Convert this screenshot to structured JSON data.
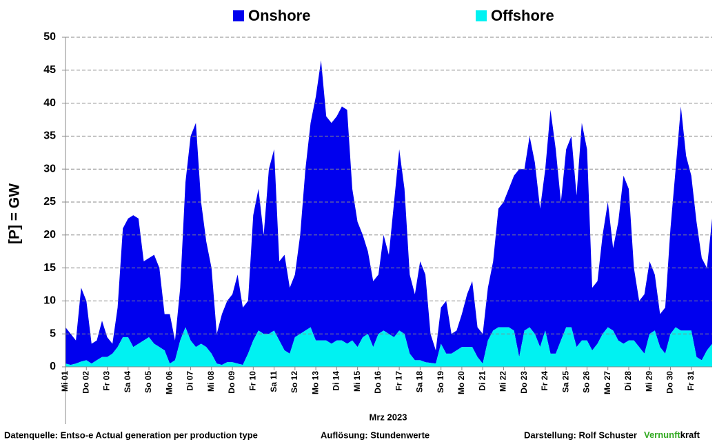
{
  "chart_data": {
    "type": "stacked_area",
    "y_label": "[P]  =  GW",
    "x_label": "Mrz 2023",
    "x": [
      0,
      0.25,
      0.5,
      0.75,
      1,
      1.25,
      1.5,
      1.75,
      2,
      2.25,
      2.5,
      2.75,
      3,
      3.25,
      3.5,
      3.75,
      4,
      4.25,
      4.5,
      4.75,
      5,
      5.25,
      5.5,
      5.75,
      6,
      6.25,
      6.5,
      6.75,
      7,
      7.25,
      7.5,
      7.75,
      8,
      8.25,
      8.5,
      8.75,
      9,
      9.25,
      9.5,
      9.75,
      10,
      10.25,
      10.5,
      10.75,
      11,
      11.25,
      11.5,
      11.75,
      12,
      12.25,
      12.5,
      12.75,
      13,
      13.25,
      13.5,
      13.75,
      14,
      14.25,
      14.5,
      14.75,
      15,
      15.25,
      15.5,
      15.75,
      16,
      16.25,
      16.5,
      16.75,
      17,
      17.25,
      17.5,
      17.75,
      18,
      18.25,
      18.5,
      18.75,
      19,
      19.25,
      19.5,
      19.75,
      20,
      20.25,
      20.5,
      20.75,
      21,
      21.25,
      21.5,
      21.75,
      22,
      22.25,
      22.5,
      22.75,
      23,
      23.25,
      23.5,
      23.75,
      24,
      24.25,
      24.5,
      24.75,
      25,
      25.25,
      25.5,
      25.75,
      26,
      26.25,
      26.5,
      26.75,
      27,
      27.25,
      27.5,
      27.75,
      28,
      28.25,
      28.5,
      28.75,
      29,
      29.25,
      29.5,
      29.75,
      30,
      30.25,
      30.5,
      30.75,
      31
    ],
    "series": [
      {
        "name": "Onshore",
        "color": "#0000ee",
        "values": [
          5.5,
          4.7,
          3.5,
          11.2,
          9,
          3,
          3,
          5.5,
          3,
          1.5,
          6,
          16.5,
          18,
          20,
          19,
          12,
          12,
          13.5,
          12,
          5.5,
          7.5,
          3,
          8,
          22,
          31,
          34,
          21.5,
          16,
          13,
          4.5,
          7.7,
          9.3,
          10.3,
          13.5,
          8.7,
          8,
          19,
          21.5,
          15,
          25,
          27.5,
          12,
          14.5,
          10,
          9.5,
          15,
          24.5,
          31,
          37,
          42.5,
          34,
          33.5,
          34,
          35.5,
          35.5,
          23,
          19,
          15.5,
          12.5,
          10,
          9,
          14.5,
          12,
          20.5,
          27.5,
          22,
          12,
          10,
          15,
          13.3,
          4.4,
          2,
          5.5,
          8,
          3,
          3,
          5,
          8,
          10,
          4.5,
          4.5,
          8,
          10.5,
          18,
          19,
          21,
          23.5,
          28.5,
          24.5,
          29,
          26,
          21,
          24.5,
          37,
          31,
          21,
          27,
          29,
          23,
          33,
          29,
          9.5,
          9.5,
          15,
          19,
          12.5,
          18,
          25.5,
          23,
          11,
          7,
          9,
          11,
          8.5,
          5,
          7,
          16,
          24,
          34,
          26.5,
          23.5,
          20.5,
          15.5,
          12.5,
          19
        ]
      },
      {
        "name": "Offshore",
        "color": "#00f2f2",
        "values": [
          0.5,
          0.3,
          0.5,
          0.8,
          1,
          0.5,
          1,
          1.5,
          1.5,
          2,
          3,
          4.5,
          4.5,
          3,
          3.5,
          4,
          4.5,
          3.5,
          3,
          2.5,
          0.5,
          1,
          4,
          6,
          4,
          3,
          3.5,
          3,
          2,
          0.5,
          0.3,
          0.7,
          0.7,
          0.5,
          0.3,
          2,
          4,
          5.5,
          5,
          5,
          5.5,
          4,
          2.5,
          2,
          4.5,
          5,
          5.5,
          6,
          4,
          4,
          4,
          3.5,
          4,
          4,
          3.5,
          4,
          3,
          4.5,
          5,
          3,
          5,
          5.5,
          5,
          4.5,
          5.5,
          5,
          2,
          1,
          1,
          0.7,
          0.6,
          0.5,
          3.5,
          2,
          2,
          2.5,
          3,
          3,
          3,
          1.5,
          0.5,
          4,
          5.5,
          6,
          6,
          6,
          5.5,
          1.5,
          5.5,
          6,
          5,
          3,
          5.5,
          2,
          2,
          4,
          6,
          6,
          3,
          4,
          4,
          2.5,
          3.5,
          5,
          6,
          5.5,
          4,
          3.5,
          4,
          4,
          3,
          2,
          5,
          5.5,
          3,
          2,
          5,
          6,
          5.5,
          5.5,
          5.5,
          1.5,
          1,
          2.5,
          3.5
        ]
      }
    ],
    "xlim": [
      0,
      31
    ],
    "xticks": [
      {
        "value": 0,
        "label": "Mi 01"
      },
      {
        "value": 1,
        "label": "Do 02"
      },
      {
        "value": 2,
        "label": "Fr 03"
      },
      {
        "value": 3,
        "label": "Sa 04"
      },
      {
        "value": 4,
        "label": "So 05"
      },
      {
        "value": 5,
        "label": "Mo 06"
      },
      {
        "value": 6,
        "label": "Di 07"
      },
      {
        "value": 7,
        "label": "Mi 08"
      },
      {
        "value": 8,
        "label": "Do 09"
      },
      {
        "value": 9,
        "label": "Fr 10"
      },
      {
        "value": 10,
        "label": "Sa 11"
      },
      {
        "value": 11,
        "label": "So 12"
      },
      {
        "value": 12,
        "label": "Mo 13"
      },
      {
        "value": 13,
        "label": "Di 14"
      },
      {
        "value": 14,
        "label": "Mi 15"
      },
      {
        "value": 15,
        "label": "Do 16"
      },
      {
        "value": 16,
        "label": "Fr 17"
      },
      {
        "value": 17,
        "label": "Sa 18"
      },
      {
        "value": 18,
        "label": "So 19"
      },
      {
        "value": 19,
        "label": "Mo 20"
      },
      {
        "value": 20,
        "label": "Di 21"
      },
      {
        "value": 21,
        "label": "Mi 22"
      },
      {
        "value": 22,
        "label": "Do 23"
      },
      {
        "value": 23,
        "label": "Fr 24"
      },
      {
        "value": 24,
        "label": "Sa 25"
      },
      {
        "value": 25,
        "label": "So 26"
      },
      {
        "value": 26,
        "label": "Mo 27"
      },
      {
        "value": 27,
        "label": "Di 28"
      },
      {
        "value": 28,
        "label": "Mi 29"
      },
      {
        "value": 29,
        "label": "Do 30"
      },
      {
        "value": 30,
        "label": "Fr 31"
      }
    ],
    "ylim": [
      0,
      50
    ],
    "yticks": [
      0,
      5,
      10,
      15,
      20,
      25,
      30,
      35,
      40,
      45,
      50
    ],
    "grid": true,
    "legend": "top",
    "footer": {
      "source": "Datenquelle: Entso-e  Actual generation per production type",
      "resolution": "Auflösung: Stundenwerte",
      "author": "Darstellung:  Rolf Schuster",
      "brand_green": "Vernunft",
      "brand_black": "kraft"
    }
  }
}
